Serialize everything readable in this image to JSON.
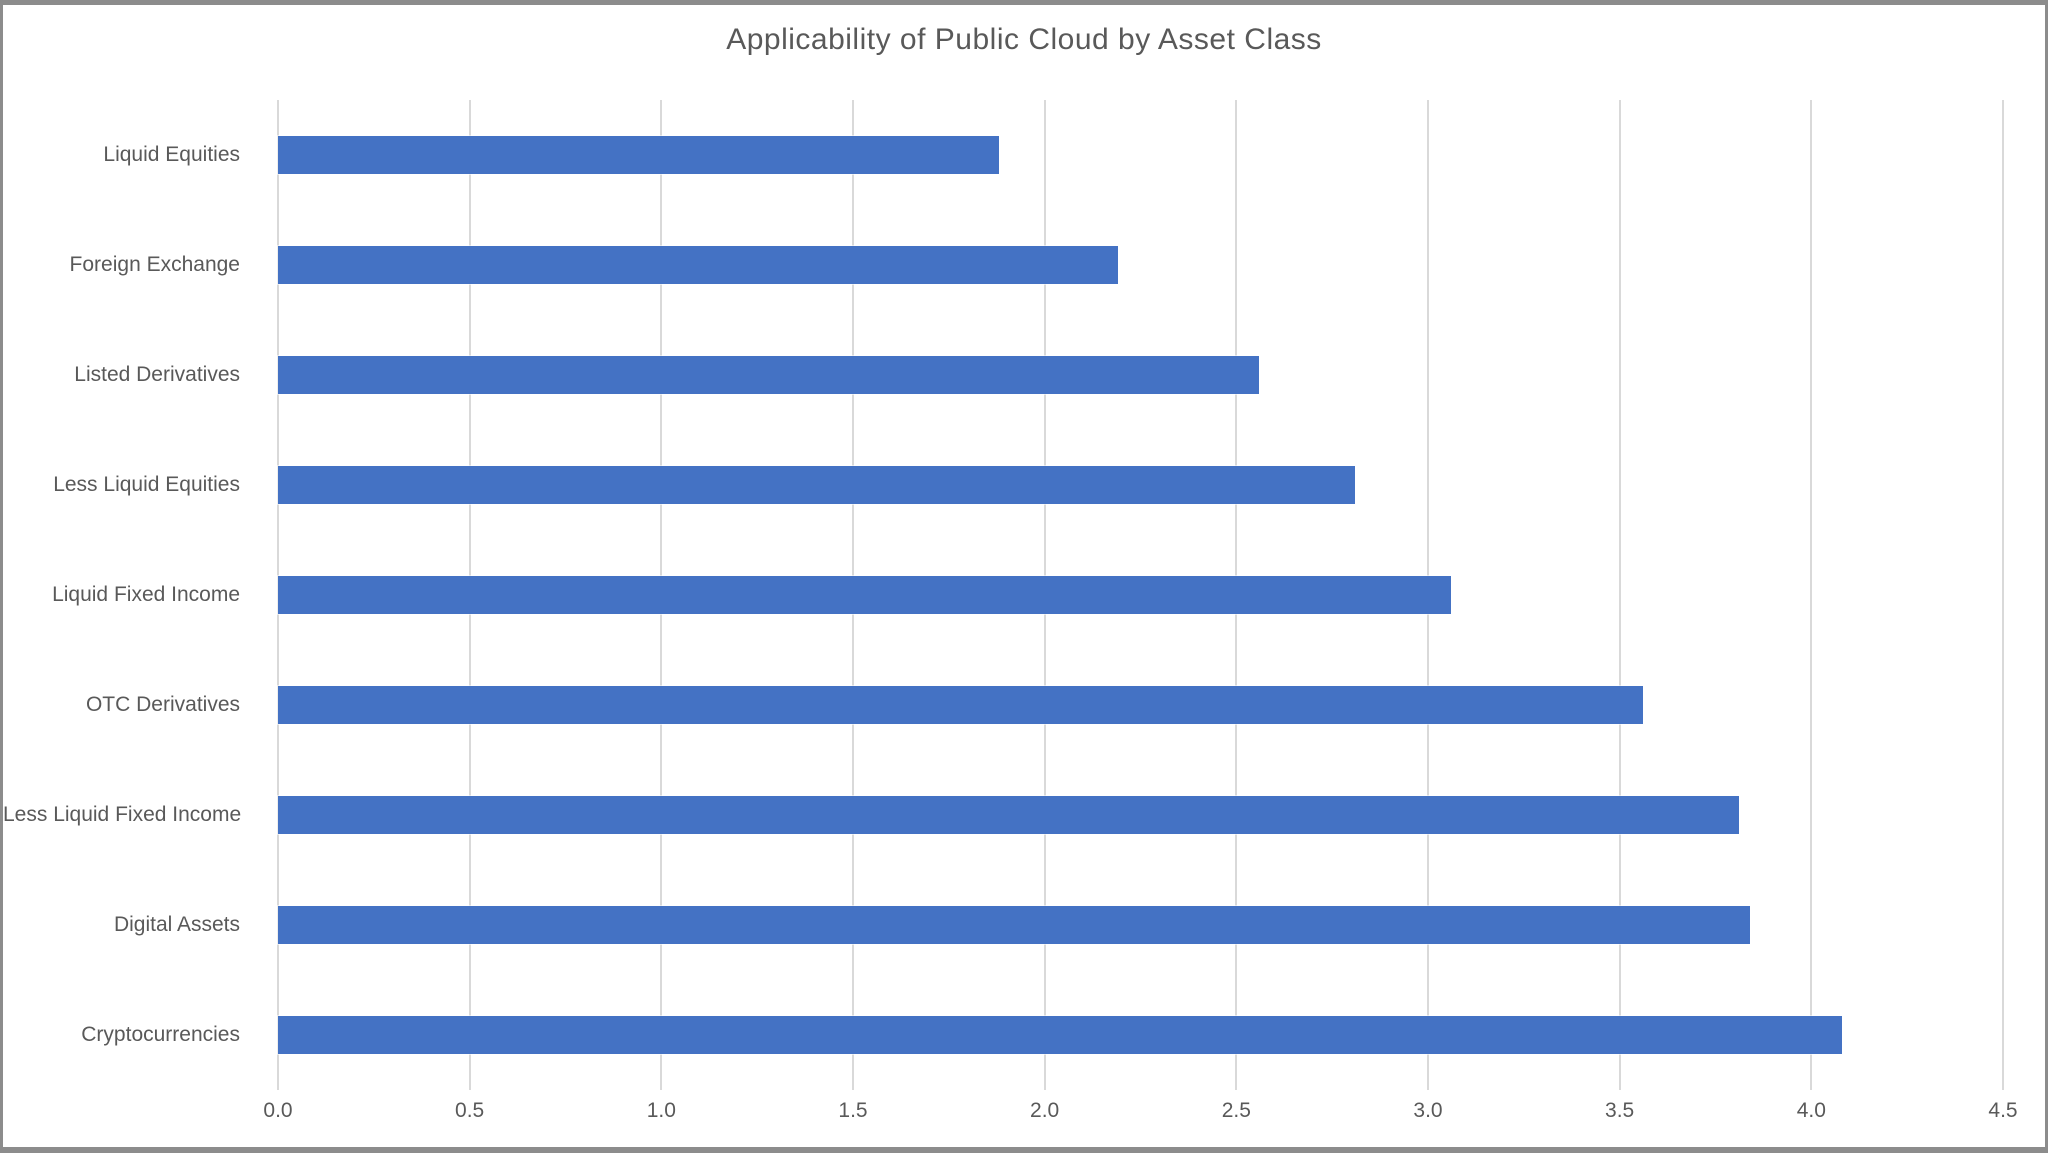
{
  "window": {
    "background": "#ffffff",
    "frame_border_color": "#8c8c8c"
  },
  "chart_data": {
    "type": "bar",
    "orientation": "horizontal",
    "title": "Applicability of Public Cloud by Asset Class",
    "categories": [
      "Liquid Equities",
      "Foreign Exchange",
      "Listed Derivatives",
      "Less Liquid Equities",
      "Liquid Fixed Income",
      "OTC Derivatives",
      "Less Liquid Fixed Income",
      "Digital Assets",
      "Cryptocurrencies"
    ],
    "values": [
      1.88,
      2.19,
      2.56,
      2.81,
      3.06,
      3.56,
      3.81,
      3.84,
      4.08
    ],
    "xlabel": "",
    "ylabel": "",
    "xlim": [
      0,
      4.5
    ],
    "x_ticks": [
      0.0,
      0.5,
      1.0,
      1.5,
      2.0,
      2.5,
      3.0,
      3.5,
      4.0,
      4.5
    ],
    "x_tick_labels": [
      "0.0",
      "0.5",
      "1.0",
      "1.5",
      "2.0",
      "2.5",
      "3.0",
      "3.5",
      "4.0",
      "4.5"
    ],
    "grid": true,
    "gridline_orientation": "vertical",
    "legend_position": "none",
    "bar_color": "#4472c4",
    "gridline_color": "#d9d9d9",
    "text_color": "#595959"
  }
}
